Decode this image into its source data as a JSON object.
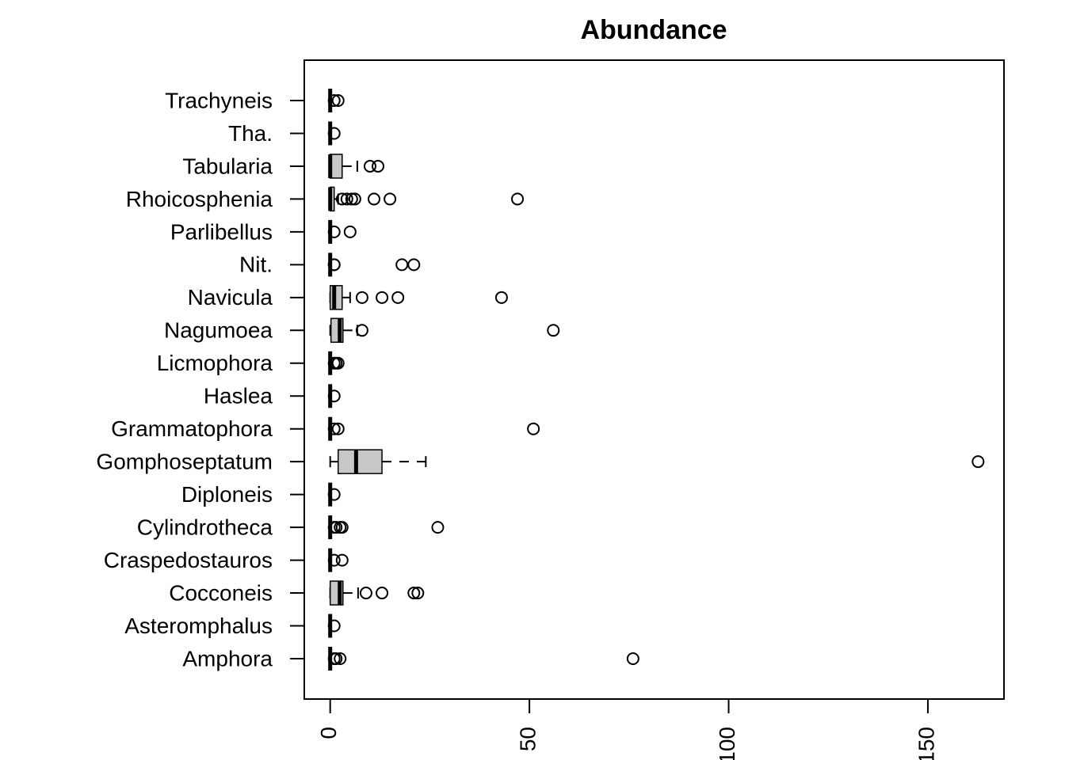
{
  "chart_data": {
    "type": "boxplot",
    "orientation": "horizontal",
    "title": "Abundance",
    "categories": [
      "Amphora",
      "Asteromphalus",
      "Cocconeis",
      "Craspedostauros",
      "Cylindrotheca",
      "Diploneis",
      "Gomphoseptatum",
      "Grammatophora",
      "Haslea",
      "Licmophora",
      "Nagumoea",
      "Navicula",
      "Nit.",
      "Parlibellus",
      "Rhoicosphenia",
      "Tabularia",
      "Tha.",
      "Trachyneis"
    ],
    "boxes": [
      {
        "min": 0,
        "q1": 0,
        "median": 0,
        "q3": 0,
        "max": 0,
        "outliers": [
          1,
          1.5,
          2.5,
          76
        ]
      },
      {
        "min": 0,
        "q1": 0,
        "median": 0,
        "q3": 0,
        "max": 0,
        "outliers": [
          1
        ]
      },
      {
        "min": 0,
        "q1": 0,
        "median": 2.4,
        "q3": 3.2,
        "max": 7,
        "outliers": [
          9,
          13,
          21,
          22
        ]
      },
      {
        "min": 0,
        "q1": 0,
        "median": 0,
        "q3": 0,
        "max": 0,
        "outliers": [
          1,
          3
        ]
      },
      {
        "min": 0,
        "q1": 0,
        "median": 0,
        "q3": 0,
        "max": 0,
        "outliers": [
          1,
          1.5,
          2.5,
          3,
          27
        ]
      },
      {
        "min": 0,
        "q1": 0,
        "median": 0,
        "q3": 0,
        "max": 0,
        "outliers": [
          1
        ]
      },
      {
        "min": 0,
        "q1": 2,
        "median": 6.5,
        "q3": 13,
        "max": 24,
        "outliers": [
          162.6
        ]
      },
      {
        "min": 0,
        "q1": 0,
        "median": 0,
        "q3": 0,
        "max": 0,
        "outliers": [
          1,
          2,
          51
        ]
      },
      {
        "min": 0,
        "q1": 0,
        "median": 0,
        "q3": 0,
        "max": 0,
        "outliers": [
          1
        ]
      },
      {
        "min": 0,
        "q1": 0,
        "median": 0,
        "q3": 0,
        "max": 0,
        "outliers": [
          1,
          1.5,
          2
        ]
      },
      {
        "min": 0,
        "q1": 0.2,
        "median": 2.4,
        "q3": 3.2,
        "max": 6.8,
        "outliers": [
          8,
          56
        ]
      },
      {
        "min": 0,
        "q1": 0,
        "median": 1,
        "q3": 3,
        "max": 5,
        "outliers": [
          8,
          13,
          17,
          43
        ]
      },
      {
        "min": 0,
        "q1": 0,
        "median": 0,
        "q3": 0,
        "max": 0,
        "outliers": [
          1,
          1,
          18,
          21
        ]
      },
      {
        "min": 0,
        "q1": 0,
        "median": 0,
        "q3": 0,
        "max": 0,
        "outliers": [
          1,
          5
        ]
      },
      {
        "min": 0,
        "q1": 0,
        "median": 0,
        "q3": 1,
        "max": 2,
        "outliers": [
          3,
          4.2,
          5.4,
          6.2,
          11,
          15,
          47
        ]
      },
      {
        "min": 0,
        "q1": 0,
        "median": 0,
        "q3": 3,
        "max": 6.8,
        "outliers": [
          10,
          12
        ]
      },
      {
        "min": 0,
        "q1": 0,
        "median": 0,
        "q3": 0,
        "max": 0,
        "outliers": [
          1
        ]
      },
      {
        "min": 0,
        "q1": 0,
        "median": 0,
        "q3": 0,
        "max": 0,
        "outliers": [
          1,
          2
        ]
      }
    ],
    "color": "#c8c8c8",
    "xlim": [
      -6.5,
      169.1
    ],
    "xticks": [
      0,
      50,
      100,
      150
    ]
  }
}
